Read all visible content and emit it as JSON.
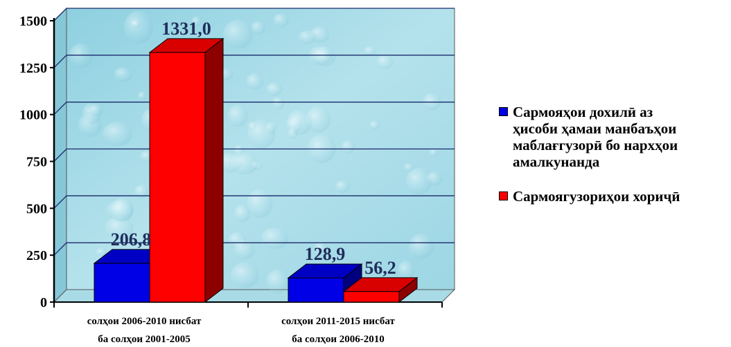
{
  "chart_data": {
    "type": "bar",
    "categories": [
      [
        "солҳои 2006-2010 нисбат",
        "ба солҳои 2001-2005"
      ],
      [
        "солҳои 2011-2015 нисбат",
        "ба солҳои 2006-2010"
      ]
    ],
    "series": [
      {
        "name": "Сармояҳои дохилӣ аз ҳисоби ҳамаи манбаъҳои маблағгузорӣ бо нархҳои амалкунанда",
        "legend_lines": [
          "Сармояҳои дохилӣ аз",
          "ҳисоби ҳамаи манбаъҳои",
          "маблағгузорӣ бо нархҳои",
          "амалкунанда"
        ],
        "values": [
          206.8,
          128.9
        ],
        "labels": [
          "206,8",
          "128,9"
        ],
        "color": "#0000e6"
      },
      {
        "name": "Сармоягузориҳои хориҷӣ",
        "legend_lines": [
          "Сармоягузориҳои хориҷӣ"
        ],
        "values": [
          1331.0,
          56.2
        ],
        "labels": [
          "1331,0",
          "56,2"
        ],
        "color": "#ff0000"
      }
    ],
    "y_ticks": [
      "0",
      "250",
      "500",
      "750",
      "1000",
      "1250",
      "1500"
    ],
    "ylim": [
      0,
      1500
    ],
    "grid": true,
    "legend_position": "right",
    "background": "water-drops texture",
    "title": "",
    "xlabel": "",
    "ylabel": ""
  }
}
